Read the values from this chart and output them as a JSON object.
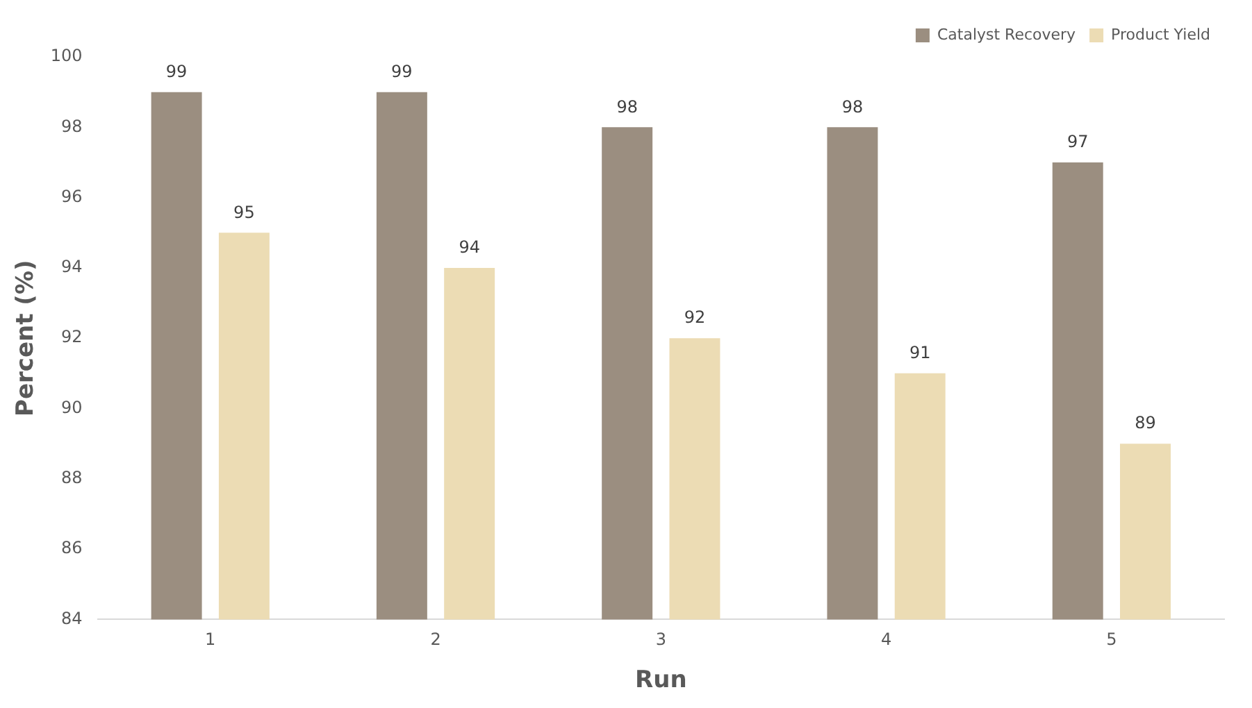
{
  "chart_data": {
    "type": "bar",
    "xlabel": "Run",
    "ylabel": "Percent (%)",
    "categories": [
      "1",
      "2",
      "3",
      "4",
      "5"
    ],
    "series": [
      {
        "name": "Catalyst Recovery",
        "color": "#9b8e80",
        "values": [
          99,
          99,
          98,
          98,
          97
        ]
      },
      {
        "name": "Product Yield",
        "color": "#ecdcb4",
        "values": [
          95,
          94,
          92,
          91,
          89
        ]
      }
    ],
    "ylim": [
      84,
      100
    ],
    "yticks": [
      84,
      86,
      88,
      90,
      92,
      94,
      96,
      98,
      100
    ],
    "grid": false,
    "legend": "top right",
    "data_labels": true
  }
}
